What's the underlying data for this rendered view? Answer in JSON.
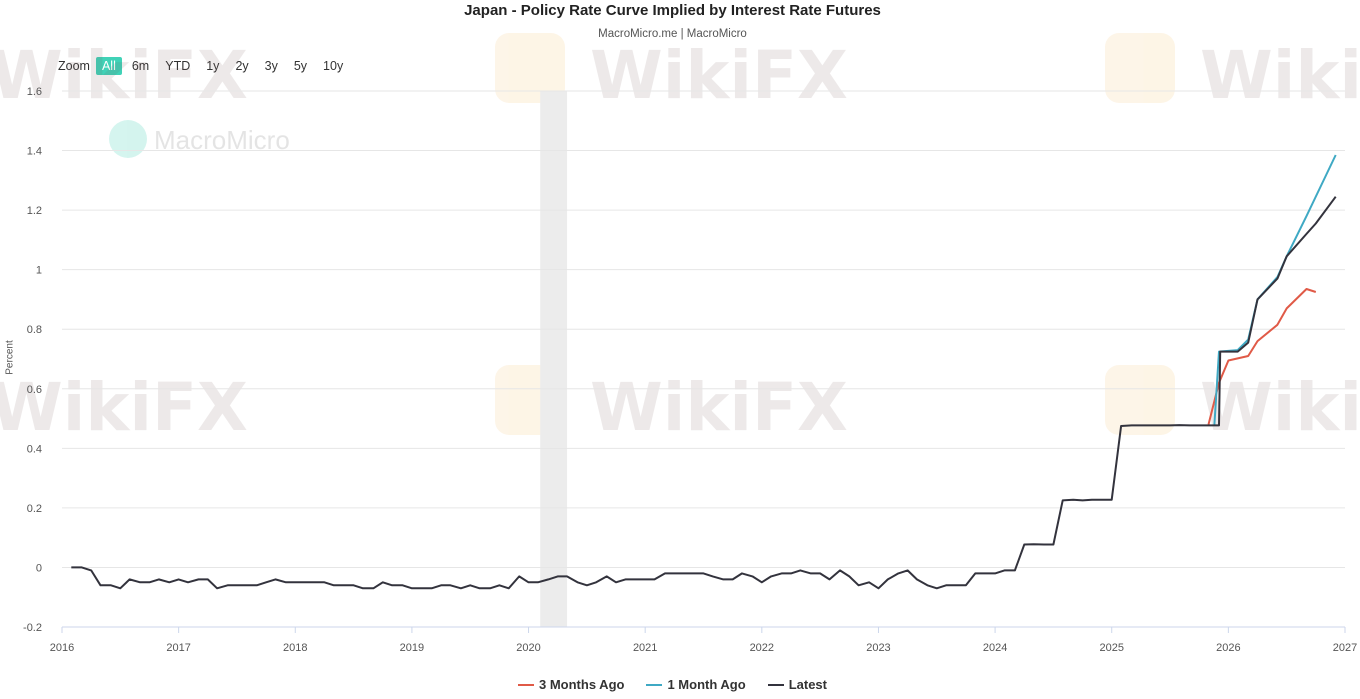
{
  "chart_data": {
    "type": "line",
    "title": "Japan - Policy Rate Curve Implied by Interest Rate Futures",
    "subtitle": "MacroMicro.me | MacroMicro",
    "ylabel": "Percent",
    "xlabel": "",
    "ylim": [
      -0.2,
      1.6
    ],
    "xlim": [
      2016,
      2027
    ],
    "y_ticks": [
      1.6,
      1.4,
      1.2,
      1,
      0.8,
      0.6,
      0.4,
      0.2,
      0,
      -0.2
    ],
    "y_tick_labels": [
      "1.6",
      "1.4",
      "1.2",
      "1",
      "0.8",
      "0.6",
      "0.4",
      "0.2",
      "0",
      "-0.2"
    ],
    "x_ticks": [
      2016,
      2017,
      2018,
      2019,
      2020,
      2021,
      2022,
      2023,
      2024,
      2025,
      2026,
      2027
    ],
    "x_tick_labels": [
      "2016",
      "2017",
      "2018",
      "2019",
      "2020",
      "2021",
      "2022",
      "2023",
      "2024",
      "2025",
      "2026",
      "2027"
    ],
    "grid": true,
    "legend_position": "bottom-center",
    "shaded_band": [
      2020.1,
      2020.33
    ],
    "series": [
      {
        "name": "3 Months Ago",
        "color": "#e05a47",
        "points": [
          [
            2025.83,
            0.48
          ],
          [
            2025.92,
            0.62
          ],
          [
            2026.0,
            0.695
          ],
          [
            2026.17,
            0.71
          ],
          [
            2026.25,
            0.76
          ],
          [
            2026.42,
            0.815
          ],
          [
            2026.5,
            0.87
          ],
          [
            2026.67,
            0.935
          ],
          [
            2026.75,
            0.925
          ]
        ]
      },
      {
        "name": "1 Month Ago",
        "color": "#3fa9c4",
        "points": [
          [
            2025.88,
            0.48
          ],
          [
            2025.92,
            0.725
          ],
          [
            2026.08,
            0.73
          ],
          [
            2026.17,
            0.765
          ],
          [
            2026.25,
            0.9
          ],
          [
            2026.42,
            0.975
          ],
          [
            2026.5,
            1.045
          ],
          [
            2026.67,
            1.18
          ],
          [
            2026.92,
            1.385
          ]
        ]
      },
      {
        "name": "Latest",
        "color": "#33333d",
        "points": [
          [
            2016.08,
            0.0
          ],
          [
            2016.17,
            0.0
          ],
          [
            2016.25,
            -0.01
          ],
          [
            2016.33,
            -0.06
          ],
          [
            2016.42,
            -0.06
          ],
          [
            2016.5,
            -0.07
          ],
          [
            2016.58,
            -0.04
          ],
          [
            2016.67,
            -0.05
          ],
          [
            2016.75,
            -0.05
          ],
          [
            2016.83,
            -0.04
          ],
          [
            2016.92,
            -0.05
          ],
          [
            2017.0,
            -0.04
          ],
          [
            2017.08,
            -0.05
          ],
          [
            2017.17,
            -0.04
          ],
          [
            2017.25,
            -0.04
          ],
          [
            2017.33,
            -0.07
          ],
          [
            2017.42,
            -0.06
          ],
          [
            2017.5,
            -0.06
          ],
          [
            2017.58,
            -0.06
          ],
          [
            2017.67,
            -0.06
          ],
          [
            2017.75,
            -0.05
          ],
          [
            2017.83,
            -0.04
          ],
          [
            2017.92,
            -0.05
          ],
          [
            2018.0,
            -0.05
          ],
          [
            2018.08,
            -0.05
          ],
          [
            2018.17,
            -0.05
          ],
          [
            2018.25,
            -0.05
          ],
          [
            2018.33,
            -0.06
          ],
          [
            2018.42,
            -0.06
          ],
          [
            2018.5,
            -0.06
          ],
          [
            2018.58,
            -0.07
          ],
          [
            2018.67,
            -0.07
          ],
          [
            2018.75,
            -0.05
          ],
          [
            2018.83,
            -0.06
          ],
          [
            2018.92,
            -0.06
          ],
          [
            2019.0,
            -0.07
          ],
          [
            2019.08,
            -0.07
          ],
          [
            2019.17,
            -0.07
          ],
          [
            2019.25,
            -0.06
          ],
          [
            2019.33,
            -0.06
          ],
          [
            2019.42,
            -0.07
          ],
          [
            2019.5,
            -0.06
          ],
          [
            2019.58,
            -0.07
          ],
          [
            2019.67,
            -0.07
          ],
          [
            2019.75,
            -0.06
          ],
          [
            2019.83,
            -0.07
          ],
          [
            2019.92,
            -0.03
          ],
          [
            2020.0,
            -0.05
          ],
          [
            2020.08,
            -0.05
          ],
          [
            2020.17,
            -0.04
          ],
          [
            2020.25,
            -0.03
          ],
          [
            2020.33,
            -0.03
          ],
          [
            2020.42,
            -0.05
          ],
          [
            2020.5,
            -0.06
          ],
          [
            2020.58,
            -0.05
          ],
          [
            2020.67,
            -0.03
          ],
          [
            2020.75,
            -0.05
          ],
          [
            2020.83,
            -0.04
          ],
          [
            2020.92,
            -0.04
          ],
          [
            2021.0,
            -0.04
          ],
          [
            2021.08,
            -0.04
          ],
          [
            2021.17,
            -0.02
          ],
          [
            2021.25,
            -0.02
          ],
          [
            2021.33,
            -0.02
          ],
          [
            2021.42,
            -0.02
          ],
          [
            2021.5,
            -0.02
          ],
          [
            2021.58,
            -0.03
          ],
          [
            2021.67,
            -0.04
          ],
          [
            2021.75,
            -0.04
          ],
          [
            2021.83,
            -0.02
          ],
          [
            2021.92,
            -0.03
          ],
          [
            2022.0,
            -0.05
          ],
          [
            2022.08,
            -0.03
          ],
          [
            2022.17,
            -0.02
          ],
          [
            2022.25,
            -0.02
          ],
          [
            2022.33,
            -0.01
          ],
          [
            2022.42,
            -0.02
          ],
          [
            2022.5,
            -0.02
          ],
          [
            2022.58,
            -0.04
          ],
          [
            2022.67,
            -0.01
          ],
          [
            2022.75,
            -0.03
          ],
          [
            2022.83,
            -0.06
          ],
          [
            2022.92,
            -0.05
          ],
          [
            2023.0,
            -0.07
          ],
          [
            2023.08,
            -0.04
          ],
          [
            2023.17,
            -0.02
          ],
          [
            2023.25,
            -0.01
          ],
          [
            2023.33,
            -0.04
          ],
          [
            2023.42,
            -0.06
          ],
          [
            2023.5,
            -0.07
          ],
          [
            2023.58,
            -0.06
          ],
          [
            2023.67,
            -0.06
          ],
          [
            2023.75,
            -0.06
          ],
          [
            2023.83,
            -0.02
          ],
          [
            2023.92,
            -0.02
          ],
          [
            2024.0,
            -0.02
          ],
          [
            2024.08,
            -0.01
          ],
          [
            2024.17,
            -0.01
          ],
          [
            2024.25,
            0.077
          ],
          [
            2024.33,
            0.078
          ],
          [
            2024.42,
            0.077
          ],
          [
            2024.5,
            0.077
          ],
          [
            2024.58,
            0.225
          ],
          [
            2024.67,
            0.227
          ],
          [
            2024.75,
            0.225
          ],
          [
            2024.83,
            0.227
          ],
          [
            2024.92,
            0.227
          ],
          [
            2025.0,
            0.227
          ],
          [
            2025.08,
            0.475
          ],
          [
            2025.17,
            0.477
          ],
          [
            2025.25,
            0.477
          ],
          [
            2025.33,
            0.477
          ],
          [
            2025.42,
            0.477
          ],
          [
            2025.5,
            0.477
          ],
          [
            2025.58,
            0.478
          ],
          [
            2025.67,
            0.477
          ],
          [
            2025.75,
            0.477
          ],
          [
            2025.83,
            0.477
          ],
          [
            2025.92,
            0.477
          ],
          [
            2025.93,
            0.725
          ],
          [
            2026.0,
            0.725
          ],
          [
            2026.08,
            0.725
          ],
          [
            2026.17,
            0.755
          ],
          [
            2026.25,
            0.9
          ],
          [
            2026.42,
            0.97
          ],
          [
            2026.5,
            1.045
          ],
          [
            2026.67,
            1.12
          ],
          [
            2026.75,
            1.155
          ],
          [
            2026.92,
            1.245
          ]
        ]
      }
    ]
  },
  "zoom": {
    "label": "Zoom",
    "options": [
      "All",
      "6m",
      "YTD",
      "1y",
      "2y",
      "3y",
      "5y",
      "10y"
    ],
    "active": "All"
  },
  "watermarks": {
    "wikifx": "WikiFX",
    "macromicro": "MacroMicro"
  },
  "colors": {
    "grid": "#e6e6e6",
    "shaded_band": "#ececec",
    "zoom_active": "#40d2b7"
  }
}
